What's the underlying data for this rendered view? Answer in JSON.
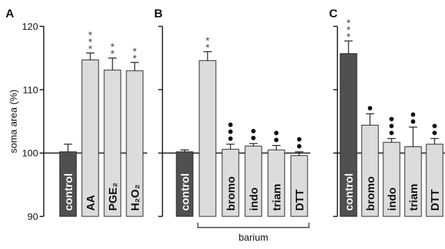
{
  "chart_data": {
    "type": "bar",
    "ylabel": "soma area (%)",
    "ylim": [
      90,
      120
    ],
    "yticks": [
      90,
      100,
      110,
      120
    ],
    "baseline": 100,
    "colors": {
      "dark": "#505050",
      "light": "#dcdcdc",
      "outline": "#222222"
    },
    "panels": [
      {
        "letter": "A",
        "bars": [
          {
            "label": "control",
            "value": 100.2,
            "err": 1.2,
            "sig": "",
            "sig_type": "",
            "fill": "dark"
          },
          {
            "label": "AA",
            "value": 114.7,
            "err": 1.1,
            "sig": "***",
            "sig_type": "star",
            "fill": "light"
          },
          {
            "label": "PGE₂",
            "value": 113.1,
            "err": 1.9,
            "sig": "**",
            "sig_type": "star",
            "fill": "light"
          },
          {
            "label": "H₂O₂",
            "value": 113.0,
            "err": 1.3,
            "sig": "**",
            "sig_type": "star",
            "fill": "light"
          }
        ]
      },
      {
        "letter": "B",
        "group_label": "barium",
        "bars": [
          {
            "label": "control",
            "value": 100.2,
            "err": 0.3,
            "sig": "",
            "sig_type": "",
            "fill": "dark"
          },
          {
            "label": "",
            "value": 114.6,
            "err": 1.4,
            "sig": "**",
            "sig_type": "star",
            "fill": "light",
            "group": true
          },
          {
            "label": "bromo",
            "value": 100.6,
            "err": 0.8,
            "sig": "•••",
            "sig_type": "dot",
            "fill": "light",
            "group": true
          },
          {
            "label": "indo",
            "value": 101.1,
            "err": 0.4,
            "sig": "••",
            "sig_type": "dot",
            "fill": "light",
            "group": true
          },
          {
            "label": "triam",
            "value": 100.5,
            "err": 0.7,
            "sig": "••",
            "sig_type": "dot",
            "fill": "light",
            "group": true
          },
          {
            "label": "DTT",
            "value": 99.6,
            "err": 0.6,
            "sig": "••",
            "sig_type": "dot",
            "fill": "light",
            "group": true
          }
        ]
      },
      {
        "letter": "C",
        "bars": [
          {
            "label": "control",
            "value": 115.7,
            "err": 2.0,
            "sig": "***",
            "sig_type": "star",
            "fill": "dark"
          },
          {
            "label": "bromo",
            "value": 104.4,
            "err": 1.8,
            "sig": "•",
            "sig_type": "dot",
            "fill": "light"
          },
          {
            "label": "indo",
            "value": 101.7,
            "err": 0.6,
            "sig": "•••",
            "sig_type": "dot",
            "fill": "light"
          },
          {
            "label": "triam",
            "value": 101.0,
            "err": 3.1,
            "sig": "••",
            "sig_type": "dot",
            "fill": "light"
          },
          {
            "label": "DTT",
            "value": 101.4,
            "err": 0.9,
            "sig": "••",
            "sig_type": "dot",
            "fill": "light"
          }
        ]
      }
    ]
  }
}
